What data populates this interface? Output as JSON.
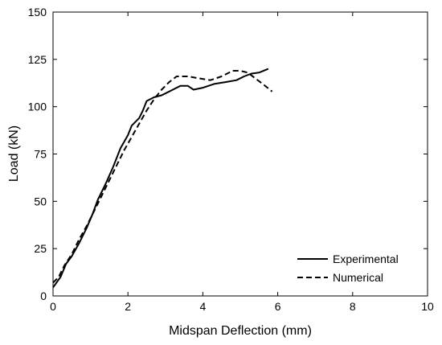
{
  "chart_data": {
    "type": "line",
    "xlabel": "Midspan Deflection (mm)",
    "ylabel": "Load (kN)",
    "xlim": [
      0,
      10
    ],
    "ylim": [
      0,
      150
    ],
    "xticks": [
      0,
      2,
      4,
      6,
      8,
      10
    ],
    "yticks": [
      0,
      25,
      50,
      75,
      100,
      125,
      150
    ],
    "grid": false,
    "legend_position": "bottom-right",
    "series": [
      {
        "name": "Experimental",
        "style": "solid",
        "color": "#000000",
        "points": [
          [
            0.0,
            4.5
          ],
          [
            0.2,
            10
          ],
          [
            0.35,
            17
          ],
          [
            0.5,
            21
          ],
          [
            0.7,
            28
          ],
          [
            0.9,
            36
          ],
          [
            1.05,
            43
          ],
          [
            1.2,
            51
          ],
          [
            1.4,
            59
          ],
          [
            1.6,
            68
          ],
          [
            1.8,
            78
          ],
          [
            2.0,
            85
          ],
          [
            2.1,
            90
          ],
          [
            2.3,
            94
          ],
          [
            2.4,
            98
          ],
          [
            2.5,
            103
          ],
          [
            2.7,
            105
          ],
          [
            2.9,
            106
          ],
          [
            3.0,
            107
          ],
          [
            3.2,
            109
          ],
          [
            3.4,
            111
          ],
          [
            3.6,
            111
          ],
          [
            3.75,
            109
          ],
          [
            4.0,
            110
          ],
          [
            4.3,
            112
          ],
          [
            4.6,
            113
          ],
          [
            4.9,
            114
          ],
          [
            5.1,
            116
          ],
          [
            5.3,
            117.5
          ],
          [
            5.5,
            118
          ],
          [
            5.75,
            120
          ]
        ]
      },
      {
        "name": "Numerical",
        "style": "dashed",
        "color": "#000000",
        "points": [
          [
            0.0,
            7
          ],
          [
            0.15,
            10
          ],
          [
            0.3,
            16
          ],
          [
            0.5,
            22
          ],
          [
            0.7,
            30
          ],
          [
            0.9,
            37
          ],
          [
            1.1,
            45
          ],
          [
            1.3,
            53
          ],
          [
            1.5,
            61
          ],
          [
            1.7,
            69
          ],
          [
            1.9,
            77
          ],
          [
            2.1,
            84
          ],
          [
            2.3,
            91
          ],
          [
            2.5,
            98
          ],
          [
            2.7,
            104
          ],
          [
            2.9,
            109
          ],
          [
            3.1,
            113
          ],
          [
            3.3,
            116
          ],
          [
            3.6,
            116
          ],
          [
            3.9,
            115
          ],
          [
            4.2,
            114
          ],
          [
            4.5,
            116
          ],
          [
            4.8,
            119
          ],
          [
            5.0,
            119
          ],
          [
            5.2,
            118
          ],
          [
            5.4,
            115
          ],
          [
            5.6,
            112
          ],
          [
            5.85,
            108
          ]
        ]
      }
    ]
  }
}
